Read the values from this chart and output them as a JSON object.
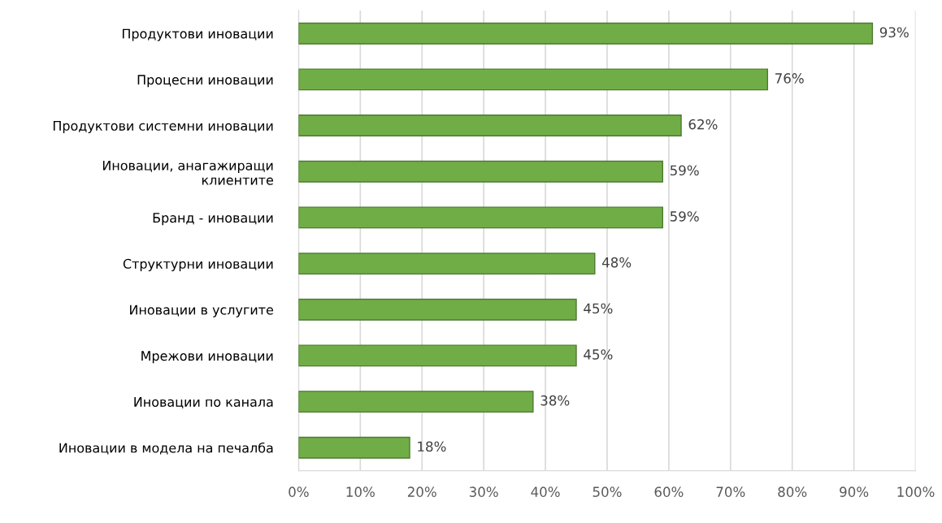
{
  "chart_data": {
    "type": "bar",
    "orientation": "horizontal",
    "categories": [
      "Продуктови иновации",
      "Процесни иновации",
      "Продуктови системни иновации",
      "Иновации, анагажиращи\nклиентите",
      "Бранд - иновации",
      "Структурни иновации",
      "Иновации в услугите",
      "Мрежови иновации",
      "Иновации по канала",
      "Иновации в модела на печалба"
    ],
    "values": [
      93,
      76,
      62,
      59,
      59,
      48,
      45,
      45,
      38,
      18
    ],
    "value_labels": [
      "93%",
      "76%",
      "62%",
      "59%",
      "59%",
      "48%",
      "45%",
      "45%",
      "38%",
      "18%"
    ],
    "color": "#70ad47",
    "xlim": [
      0,
      100
    ],
    "xticks": [
      {
        "value": 0,
        "label": "0%"
      },
      {
        "value": 10,
        "label": "10%"
      },
      {
        "value": 20,
        "label": "20%"
      },
      {
        "value": 30,
        "label": "30%"
      },
      {
        "value": 40,
        "label": "40%"
      },
      {
        "value": 50,
        "label": "50%"
      },
      {
        "value": 60,
        "label": "60%"
      },
      {
        "value": 70,
        "label": "70%"
      },
      {
        "value": 80,
        "label": "80%"
      },
      {
        "value": 90,
        "label": "90%"
      },
      {
        "value": 100,
        "label": "100%"
      }
    ],
    "grid": "x"
  }
}
